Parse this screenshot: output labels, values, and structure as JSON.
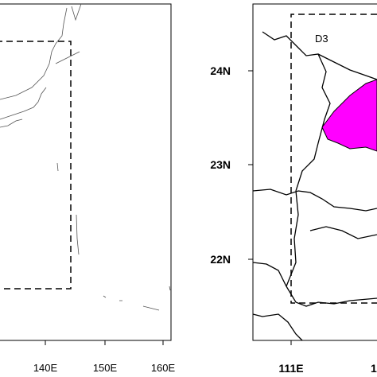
{
  "left_panel": {
    "x_labels": [
      "140E",
      "150E",
      "160E"
    ]
  },
  "right_panel": {
    "y_labels": [
      "24N",
      "23N",
      "22N"
    ],
    "x_labels": [
      "111E",
      "1"
    ],
    "domain_label": "D3"
  }
}
